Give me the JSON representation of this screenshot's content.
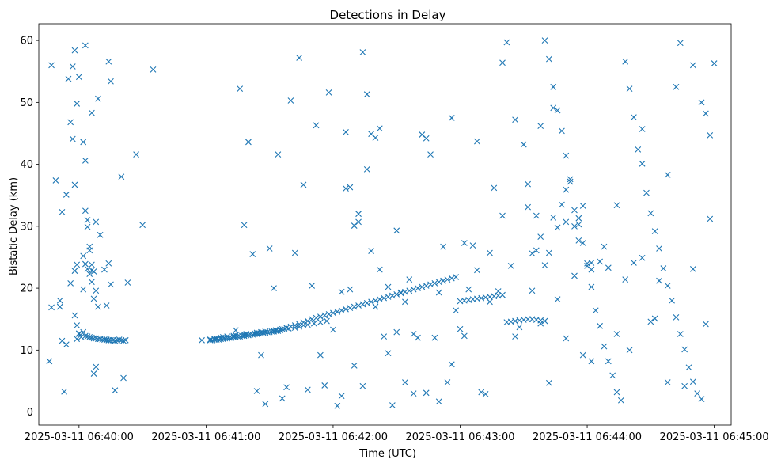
{
  "chart_data": {
    "type": "scatter",
    "title": "Detections in Delay",
    "xlabel": "Time (UTC)",
    "ylabel": "Bistatic Delay (km)",
    "x_unit": "seconds after 2025-03-11 06:40:00",
    "xlim": [
      -19,
      308
    ],
    "ylim": [
      -2.1,
      62.7
    ],
    "x_ticks": [
      {
        "value": 0,
        "label": "2025-03-11 06:40:00"
      },
      {
        "value": 60,
        "label": "2025-03-11 06:41:00"
      },
      {
        "value": 120,
        "label": "2025-03-11 06:42:00"
      },
      {
        "value": 180,
        "label": "2025-03-11 06:43:00"
      },
      {
        "value": 240,
        "label": "2025-03-11 06:44:00"
      },
      {
        "value": 300,
        "label": "2025-03-11 06:45:00"
      }
    ],
    "y_ticks": [
      {
        "value": 0,
        "label": "0"
      },
      {
        "value": 10,
        "label": "10"
      },
      {
        "value": 20,
        "label": "20"
      },
      {
        "value": 30,
        "label": "30"
      },
      {
        "value": 40,
        "label": "40"
      },
      {
        "value": 50,
        "label": "50"
      },
      {
        "value": 60,
        "label": "60"
      }
    ],
    "marker": "x",
    "color": "#1f77b4",
    "series": [
      {
        "name": "detections",
        "x": [
          -14,
          -13,
          -11,
          -9,
          -8,
          -7,
          -6,
          -5,
          -4,
          -3,
          -2,
          -2,
          -1,
          -1,
          0,
          0,
          2,
          2,
          3,
          3,
          4,
          5,
          6,
          6,
          7,
          7,
          8,
          9,
          10,
          12,
          13,
          14,
          15,
          15,
          17,
          20,
          21,
          27,
          30,
          35,
          -8,
          -6,
          -3,
          -2,
          -1,
          0,
          1,
          2,
          3,
          4,
          4,
          5,
          6,
          6,
          7,
          8,
          9,
          10,
          12,
          13,
          14,
          3,
          4,
          5,
          6,
          7,
          8,
          9,
          10,
          11,
          12,
          13,
          14,
          15,
          16,
          17,
          18,
          19,
          20,
          21,
          22,
          -13,
          -9,
          -4,
          -2,
          -1,
          2,
          3,
          5,
          8,
          14,
          23,
          58,
          62,
          64,
          65,
          67,
          68,
          70,
          73,
          74,
          78,
          79,
          83,
          84,
          86,
          88,
          92,
          93,
          95,
          97,
          99,
          102,
          104,
          106,
          108,
          111,
          114,
          117,
          62,
          63,
          64,
          65,
          66,
          67,
          68,
          69,
          70,
          71,
          72,
          73,
          74,
          75,
          76,
          77,
          78,
          79,
          80,
          81,
          82,
          83,
          84,
          85,
          86,
          87,
          88,
          89,
          90,
          91,
          92,
          93,
          94,
          95,
          96,
          98,
          100,
          102,
          104,
          106,
          108,
          110,
          112,
          114,
          116,
          118,
          120,
          122,
          124,
          126,
          128,
          130,
          132,
          134,
          136,
          138,
          140,
          142,
          144,
          146,
          148,
          150,
          152,
          154,
          156,
          158,
          160,
          162,
          164,
          166,
          168,
          170,
          172,
          174,
          176,
          178,
          180,
          182,
          184,
          186,
          188,
          190,
          192,
          194,
          196,
          198,
          200,
          202,
          204,
          206,
          208,
          210,
          212,
          214,
          216,
          218,
          220,
          220,
          222,
          224,
          226,
          228,
          230,
          232,
          234,
          236,
          238,
          240,
          242,
          244,
          246,
          248,
          250,
          252,
          254,
          256,
          258,
          260,
          262,
          264,
          266,
          268,
          270,
          272,
          274,
          276,
          278,
          280,
          282,
          284,
          286,
          288,
          290,
          292,
          294,
          296,
          298,
          300,
          74,
          76,
          78,
          80,
          82,
          84,
          86,
          88,
          90,
          92,
          94,
          96,
          98,
          100,
          102,
          104,
          106,
          108,
          110,
          112,
          114,
          116,
          118,
          120,
          122,
          124,
          126,
          128,
          130,
          132,
          134,
          136,
          138,
          140,
          142,
          144,
          146,
          148,
          150,
          152,
          154,
          156,
          158,
          160,
          162,
          164,
          166,
          168,
          170,
          172,
          174,
          176,
          178,
          180,
          182,
          184,
          186,
          188,
          190,
          192,
          194,
          196,
          198,
          200,
          202,
          204,
          206,
          208,
          210,
          212,
          214,
          216,
          218,
          222,
          226,
          230,
          234,
          238,
          242,
          246,
          250,
          254,
          258,
          262,
          266,
          270,
          274,
          278,
          282,
          286,
          290,
          294,
          298,
          124,
          126,
          128,
          130,
          132,
          134,
          136,
          138,
          140,
          142,
          146,
          150,
          154,
          158,
          164,
          170,
          176,
          182,
          188,
          194,
          200,
          206,
          212,
          218,
          224,
          230,
          236,
          242,
          248,
          254,
          260,
          266,
          272,
          278,
          284,
          290,
          296,
          214,
          216,
          218,
          220,
          222,
          224,
          226,
          228,
          230,
          232,
          234,
          236,
          238,
          240,
          242
        ],
        "y": [
          8.2,
          56,
          37.4,
          17,
          11.5,
          3.3,
          10.9,
          53.8,
          46.8,
          55.8,
          58.4,
          36.7,
          49.8,
          14,
          12.6,
          12.7,
          43.6,
          19.8,
          40.6,
          59.2,
          23.1,
          26.1,
          21.0,
          48.3,
          18.3,
          22.7,
          30.7,
          50.6,
          28.6,
          23.0,
          17.2,
          56.6,
          53.4,
          20.6,
          3.5,
          38.0,
          5.5,
          41.6,
          30.2,
          55.3,
          32.3,
          35.1,
          44.1,
          15.6,
          11.8,
          54.1,
          12.1,
          12.9,
          32.5,
          31.0,
          29.9,
          26.7,
          23.8,
          22.9,
          6.2,
          7.3,
          17.0,
          11.8,
          11.7,
          11.6,
          11.6,
          12.3,
          12.2,
          12.1,
          12.0,
          11.9,
          11.9,
          11.8,
          11.8,
          11.7,
          11.7,
          11.7,
          11.6,
          11.6,
          11.6,
          11.5,
          11.6,
          11.7,
          11.6,
          11.5,
          11.6,
          16.9,
          18.0,
          20.8,
          22.8,
          23.8,
          25.2,
          23.9,
          22.3,
          19.6,
          24.0,
          20.9,
          11.6,
          11.7,
          11.8,
          11.9,
          12.0,
          12.1,
          12.2,
          12.3,
          12.4,
          12.5,
          12.6,
          12.7,
          12.8,
          12.9,
          13.0,
          13.1,
          13.2,
          13.3,
          13.4,
          13.5,
          13.6,
          13.8,
          14.0,
          14.1,
          14.3,
          14.5,
          14.7,
          11.6,
          11.6,
          11.7,
          11.7,
          11.7,
          11.8,
          11.8,
          11.9,
          11.9,
          12.0,
          12.0,
          12.1,
          12.1,
          12.2,
          12.2,
          12.3,
          12.3,
          12.4,
          12.4,
          12.5,
          12.5,
          12.6,
          12.6,
          12.7,
          12.7,
          12.8,
          12.8,
          12.9,
          12.9,
          13.0,
          13.0,
          13.1,
          13.1,
          13.2,
          13.4,
          13.6,
          13.8,
          14.0,
          14.2,
          14.5,
          14.7,
          15.0,
          15.2,
          15.4,
          15.6,
          15.8,
          16.0,
          16.2,
          16.4,
          16.6,
          16.8,
          17.0,
          17.2,
          17.4,
          17.6,
          17.8,
          18.0,
          18.2,
          18.4,
          18.6,
          18.8,
          19.0,
          19.2,
          19.4,
          19.6,
          19.8,
          20.0,
          20.2,
          20.4,
          20.6,
          20.8,
          21.0,
          21.2,
          21.4,
          21.6,
          21.8,
          17.9,
          18.0,
          18.1,
          18.2,
          18.3,
          18.4,
          18.5,
          18.6,
          18.7,
          18.8,
          18.9,
          14.5,
          14.6,
          14.7,
          14.8,
          14.9,
          15.0,
          15.0,
          14.9,
          14.8,
          14.7,
          60.0,
          57.0,
          52.5,
          48.7,
          45.4,
          41.4,
          37.6,
          32.6,
          30.3,
          27.3,
          23.6,
          20.2,
          16.4,
          13.9,
          10.6,
          8.2,
          5.9,
          3.2,
          1.9,
          56.6,
          52.2,
          47.6,
          42.4,
          40.1,
          35.4,
          32.1,
          29.2,
          26.4,
          23.2,
          20.4,
          18.0,
          15.3,
          12.6,
          10.1,
          7.2,
          4.9,
          3.0,
          2.1,
          14.2,
          31.2,
          56.3,
          13.2,
          52.2,
          30.2,
          43.6,
          25.5,
          3.4,
          9.2,
          1.3,
          26.4,
          20.0,
          41.6,
          2.2,
          4.0,
          50.3,
          25.7,
          57.2,
          36.7,
          3.6,
          20.4,
          46.3,
          9.2,
          4.3,
          51.6,
          13.3,
          1.0,
          2.6,
          45.2,
          19.8,
          7.5,
          32.0,
          4.2,
          39.2,
          26.0,
          17.0,
          23.0,
          12.2,
          9.5,
          1.1,
          29.3,
          19.3,
          4.8,
          21.4,
          3.0,
          12.0,
          44.8,
          44.2,
          41.6,
          12.0,
          1.7,
          26.7,
          4.8,
          7.7,
          16.4,
          13.4,
          12.3,
          19.8,
          26.9,
          43.7,
          3.2,
          2.9,
          17.8,
          36.2,
          19.5,
          31.7,
          59.7,
          23.6,
          12.2,
          13.7,
          43.2,
          36.8,
          19.6,
          31.7,
          14.3,
          4.7,
          18.2,
          11.9,
          22.0,
          9.2,
          8.2,
          24.3,
          23.3,
          33.4,
          21.4,
          24.1,
          45.7,
          14.6,
          21.2,
          38.3,
          52.5,
          4.2,
          56.0,
          50.0,
          44.7,
          19.4,
          36.1,
          36.3,
          30.1,
          30.7,
          58.1,
          51.3,
          44.9,
          44.3,
          45.8,
          20.2,
          12.9,
          17.8,
          12.6,
          3.1,
          19.3,
          47.5,
          27.3,
          22.9,
          25.7,
          56.4,
          47.2,
          33.1,
          46.2,
          49.1,
          30.7,
          31.3,
          23.0,
          26.7,
          12.6,
          10.0,
          24.9,
          15.1,
          4.8,
          59.6,
          23.1,
          48.2,
          25.6,
          26.1,
          28.3,
          23.7,
          25.7,
          31.4,
          29.8,
          33.5,
          35.9,
          37.2,
          30.0,
          27.7,
          33.3,
          24.0,
          24.1
        ]
      }
    ]
  }
}
